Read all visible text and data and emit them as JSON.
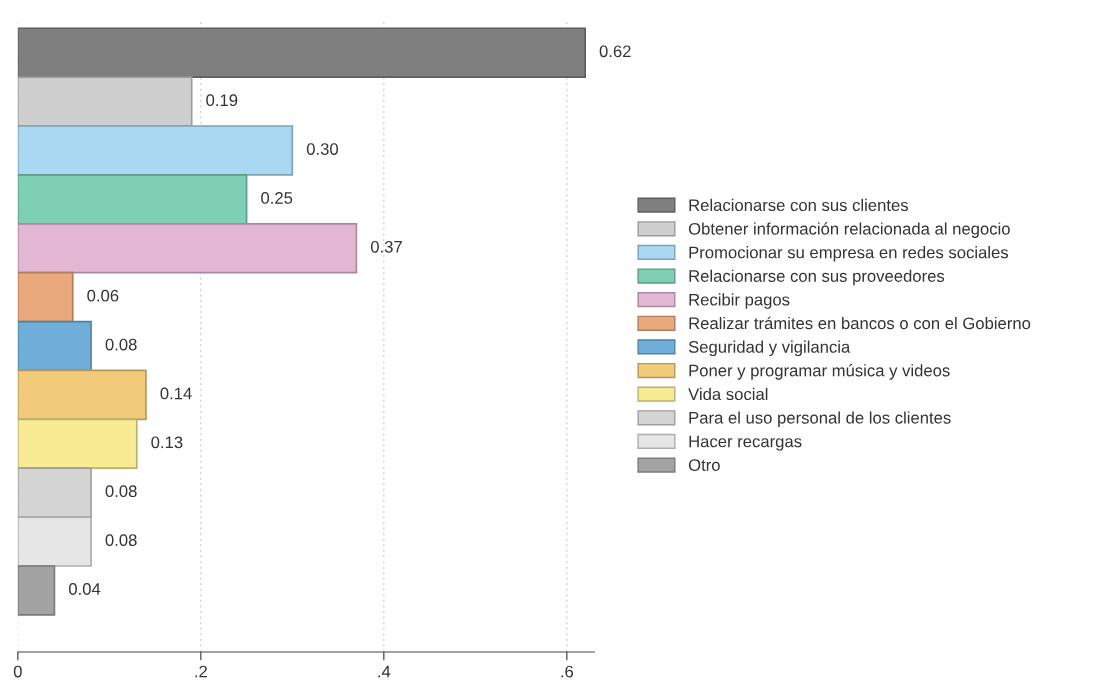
{
  "chart_data": {
    "type": "bar",
    "orientation": "horizontal",
    "categories": [
      null
    ],
    "series": [
      {
        "name": "Relacionarse con sus clientes",
        "color": "#7f7f7f",
        "values": [
          0.62
        ],
        "value_labels": [
          "0.62"
        ]
      },
      {
        "name": "Obtener información relacionada al negocio",
        "color": "#cfcfcf",
        "values": [
          0.19
        ],
        "value_labels": [
          "0.19"
        ]
      },
      {
        "name": "Promocionar su empresa en redes sociales",
        "color": "#a8d8f2",
        "values": [
          0.3
        ],
        "value_labels": [
          "0.30"
        ]
      },
      {
        "name": "Relacionarse con sus proveedores",
        "color": "#7fcfb5",
        "values": [
          0.25
        ],
        "value_labels": [
          "0.25"
        ]
      },
      {
        "name": "Recibir pagos",
        "color": "#e3b7d3",
        "values": [
          0.37
        ],
        "value_labels": [
          "0.37"
        ]
      },
      {
        "name": "Realizar trámites en bancos o con el Gobierno",
        "color": "#eaa97c",
        "values": [
          0.06
        ],
        "value_labels": [
          "0.06"
        ]
      },
      {
        "name": "Seguridad y vigilancia",
        "color": "#6eaed9",
        "values": [
          0.08
        ],
        "value_labels": [
          "0.08"
        ]
      },
      {
        "name": "Poner y programar música y videos",
        "color": "#f2cb7a",
        "values": [
          0.14
        ],
        "value_labels": [
          "0.14"
        ]
      },
      {
        "name": "Vida social",
        "color": "#f7ec94",
        "values": [
          0.13
        ],
        "value_labels": [
          "0.13"
        ]
      },
      {
        "name": "Para el uso personal de los clientes",
        "color": "#d4d4d4",
        "values": [
          0.08
        ],
        "value_labels": [
          "0.08"
        ]
      },
      {
        "name": "Hacer recargas",
        "color": "#e6e6e6",
        "values": [
          0.08
        ],
        "value_labels": [
          "0.08"
        ]
      },
      {
        "name": "Otro",
        "color": "#a3a3a3",
        "values": [
          0.04
        ],
        "value_labels": [
          "0.04"
        ]
      }
    ],
    "xlim": [
      0,
      0.63
    ],
    "xticks": [
      0,
      {
        "value": 0.2,
        "label": ".2"
      },
      {
        "value": 0.4,
        "label": ".4"
      },
      {
        "value": 0.6,
        "label": ".6"
      }
    ],
    "grid": "x",
    "legend": "right",
    "tick_labels": "x"
  }
}
